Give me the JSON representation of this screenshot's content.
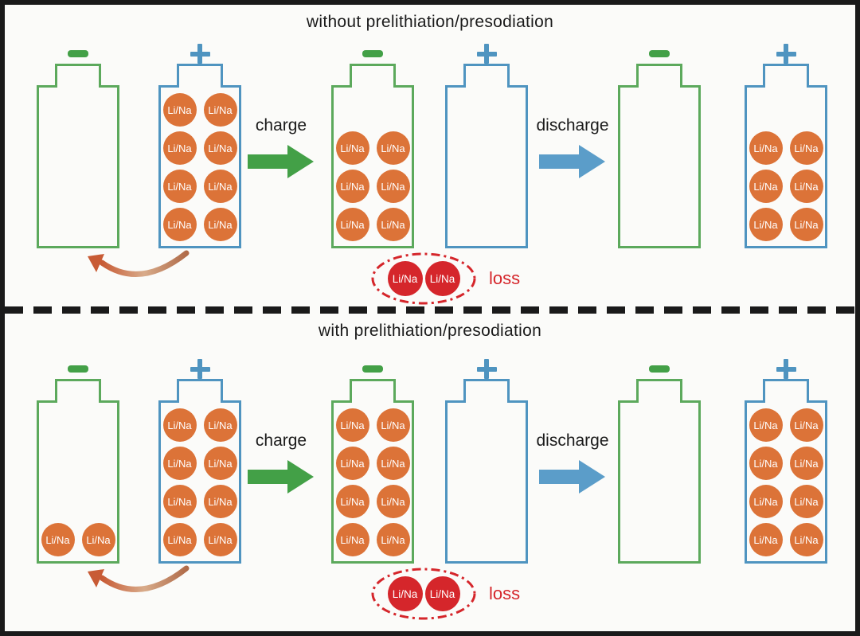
{
  "ion_label": "Li/Na",
  "colors": {
    "frame_black": "#1a1a1a",
    "paper": "#fbfbf9",
    "text_black": "#1b1b1b",
    "green_outline": "#5ca95c",
    "green_arrow": "#43a047",
    "blue_outline": "#4f94c0",
    "blue_arrow": "#5b9dc9",
    "orange_ion": "#dc7338",
    "red_loss": "#d5262b",
    "curve_arrow_left": "#c85b35",
    "curve_arrow_mid": "#d8ab8a",
    "curve_arrow_right": "#b06b49"
  },
  "panels": [
    {
      "title": "without prelithiation/presodiation",
      "charge_arrow_label": "charge",
      "discharge_arrow_label": "discharge",
      "loss_label": "loss",
      "loss_ion_count": 2,
      "batteries": [
        {
          "name": "anode-initial",
          "electrode": "anode",
          "terminal": "minus",
          "ion_count": 0
        },
        {
          "name": "cathode-initial",
          "electrode": "cathode",
          "terminal": "plus",
          "ion_count": 8
        },
        {
          "name": "anode-charged",
          "electrode": "anode",
          "terminal": "minus",
          "ion_count": 6
        },
        {
          "name": "cathode-charged",
          "electrode": "cathode",
          "terminal": "plus",
          "ion_count": 0
        },
        {
          "name": "anode-discharged",
          "electrode": "anode",
          "terminal": "minus",
          "ion_count": 0
        },
        {
          "name": "cathode-discharged",
          "electrode": "cathode",
          "terminal": "plus",
          "ion_count": 6
        }
      ]
    },
    {
      "title": "with prelithiation/presodiation",
      "charge_arrow_label": "charge",
      "discharge_arrow_label": "discharge",
      "loss_label": "loss",
      "loss_ion_count": 2,
      "batteries": [
        {
          "name": "anode-initial",
          "electrode": "anode",
          "terminal": "minus",
          "ion_count": 2
        },
        {
          "name": "cathode-initial",
          "electrode": "cathode",
          "terminal": "plus",
          "ion_count": 8
        },
        {
          "name": "anode-charged",
          "electrode": "anode",
          "terminal": "minus",
          "ion_count": 8
        },
        {
          "name": "cathode-charged",
          "electrode": "cathode",
          "terminal": "plus",
          "ion_count": 0
        },
        {
          "name": "anode-discharged",
          "electrode": "anode",
          "terminal": "minus",
          "ion_count": 0
        },
        {
          "name": "cathode-discharged",
          "electrode": "cathode",
          "terminal": "plus",
          "ion_count": 8
        }
      ]
    }
  ]
}
